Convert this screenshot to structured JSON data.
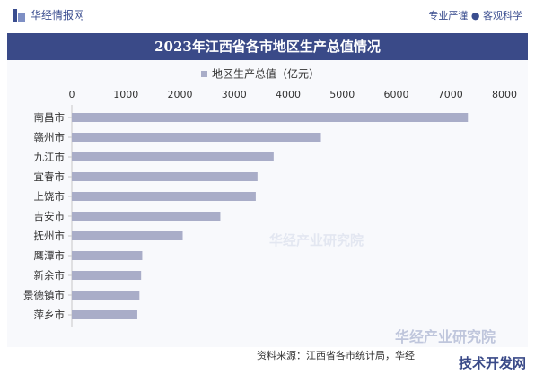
{
  "header": {
    "brand": "华经情报网",
    "tagline": "专业严谨 ● 客观科学"
  },
  "chart_data": {
    "type": "bar",
    "orientation": "horizontal",
    "title": "2023年江西省各市地区生产总值情况",
    "categories": [
      "南昌市",
      "赣州市",
      "九江市",
      "宜春市",
      "上饶市",
      "吉安市",
      "抚州市",
      "鹰潭市",
      "新余市",
      "景德镇市",
      "萍乡市"
    ],
    "series": [
      {
        "name": "地区生产总值（亿元）",
        "values": [
          7324,
          4606,
          3732,
          3433,
          3401,
          2746,
          2050,
          1302,
          1281,
          1250,
          1211
        ]
      }
    ],
    "xlim": [
      0,
      8000
    ],
    "xticks": [
      0,
      1000,
      2000,
      3000,
      4000,
      5000,
      6000,
      7000,
      8000
    ],
    "legend_position": "top",
    "bar_color": "#a9adc8"
  },
  "footer": {
    "source": "资料来源：江西省各市统计局，华经",
    "watermark": "华经产业研究院",
    "corner_mark": "技术开发网"
  }
}
